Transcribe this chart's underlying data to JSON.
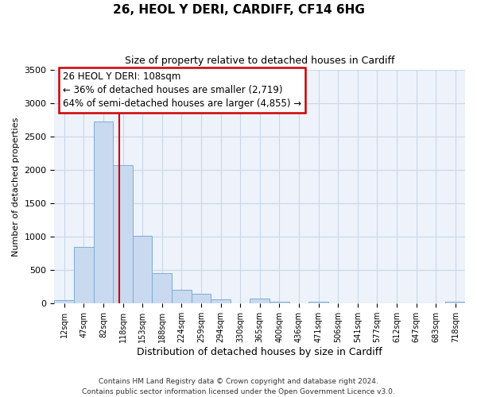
{
  "title": "26, HEOL Y DERI, CARDIFF, CF14 6HG",
  "subtitle": "Size of property relative to detached houses in Cardiff",
  "xlabel": "Distribution of detached houses by size in Cardiff",
  "ylabel": "Number of detached properties",
  "categories": [
    "12sqm",
    "47sqm",
    "82sqm",
    "118sqm",
    "153sqm",
    "188sqm",
    "224sqm",
    "259sqm",
    "294sqm",
    "330sqm",
    "365sqm",
    "400sqm",
    "436sqm",
    "471sqm",
    "506sqm",
    "541sqm",
    "577sqm",
    "612sqm",
    "647sqm",
    "683sqm",
    "718sqm"
  ],
  "bar_values": [
    55,
    850,
    2730,
    2080,
    1010,
    455,
    210,
    145,
    60,
    0,
    70,
    30,
    0,
    30,
    0,
    0,
    0,
    0,
    0,
    0,
    30
  ],
  "bar_color": "#c9d9f0",
  "bar_edge_color": "#7bafd4",
  "grid_color": "#c8d8e8",
  "bg_color": "#eef2fa",
  "annotation_line1": "26 HEOL Y DERI: 108sqm",
  "annotation_line2": "← 36% of detached houses are smaller (2,719)",
  "annotation_line3": "64% of semi-detached houses are larger (4,855) →",
  "annotation_box_edge_color": "#cc0000",
  "vline_color": "#cc0000",
  "vline_pos": 2.82,
  "ylim": [
    0,
    3500
  ],
  "yticks": [
    0,
    500,
    1000,
    1500,
    2000,
    2500,
    3000,
    3500
  ],
  "footer_line1": "Contains HM Land Registry data © Crown copyright and database right 2024.",
  "footer_line2": "Contains public sector information licensed under the Open Government Licence v3.0."
}
